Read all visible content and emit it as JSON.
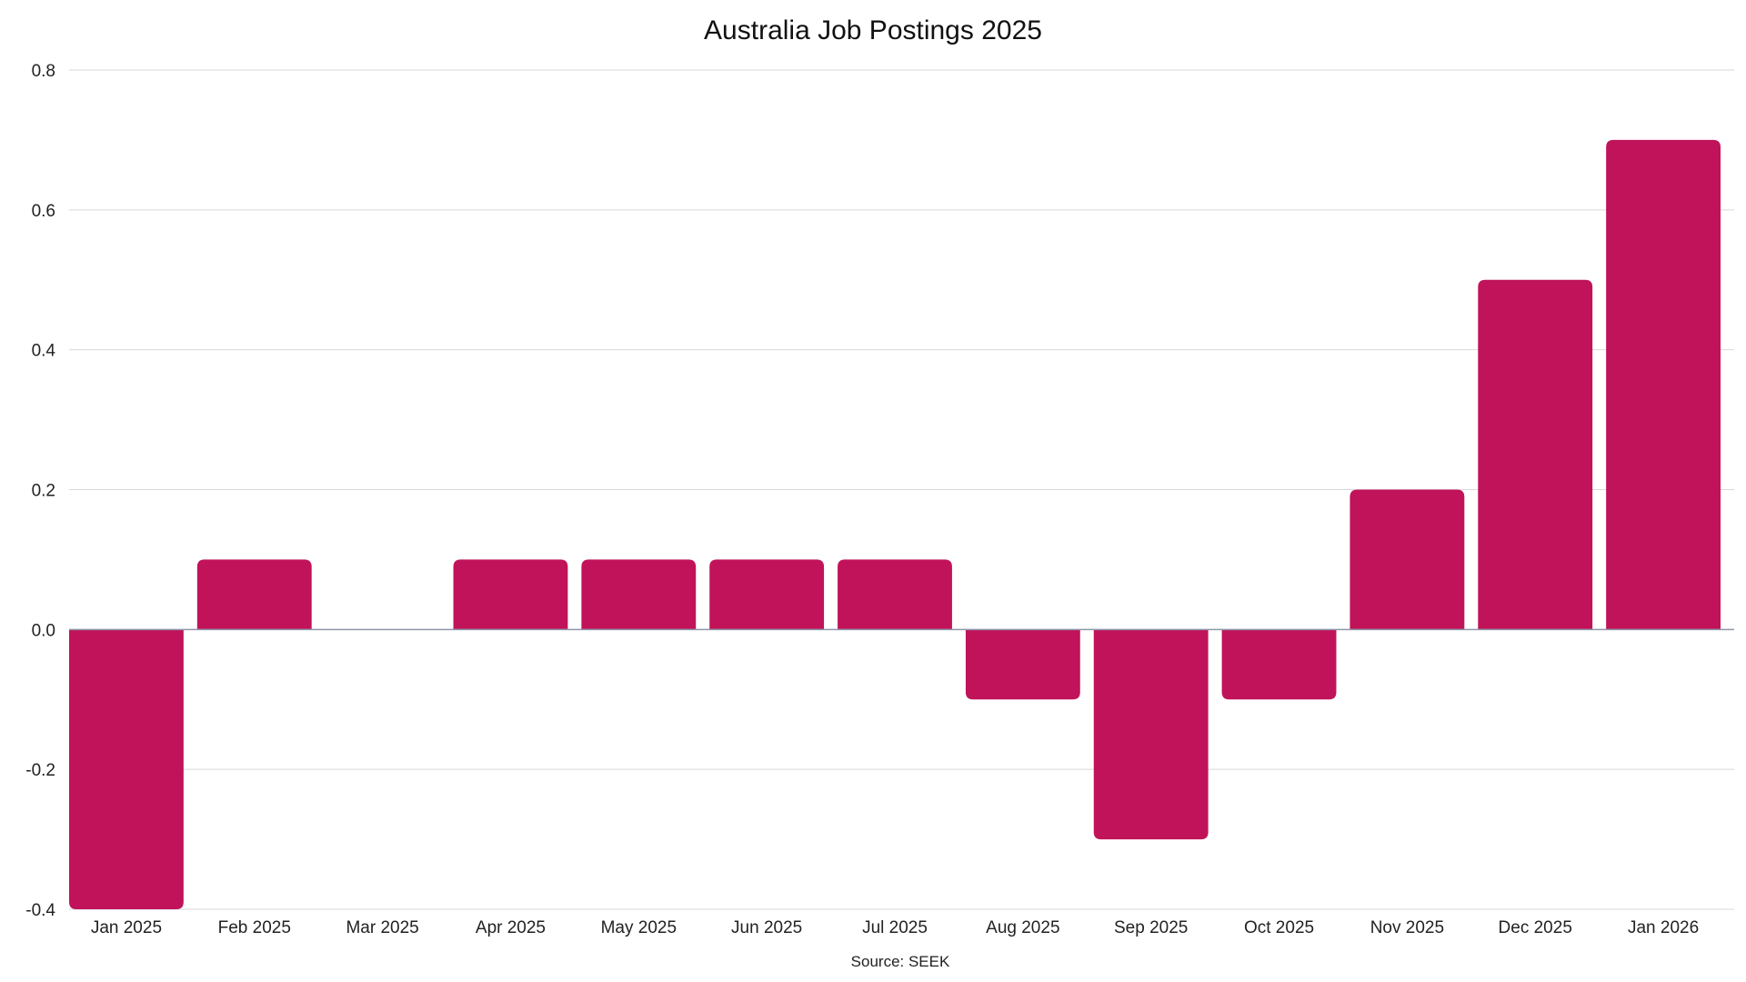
{
  "chart_data": {
    "type": "bar",
    "title": "Australia Job Postings 2025",
    "xlabel": "",
    "ylabel": "",
    "source": "Source: SEEK",
    "categories": [
      "Jan 2025",
      "Feb 2025",
      "Mar 2025",
      "Apr 2025",
      "May 2025",
      "Jun 2025",
      "Jul 2025",
      "Aug 2025",
      "Sep 2025",
      "Oct 2025",
      "Nov 2025",
      "Dec 2025",
      "Jan 2026"
    ],
    "values": [
      -0.4,
      0.1,
      0.0,
      0.1,
      0.1,
      0.1,
      0.1,
      -0.1,
      -0.3,
      -0.1,
      0.2,
      0.5,
      0.7
    ],
    "ylim": [
      -0.4,
      0.8
    ],
    "yticks": [
      -0.4,
      -0.2,
      0.0,
      0.2,
      0.4,
      0.6,
      0.8
    ],
    "ytick_labels": [
      "-0.4",
      "-0.2",
      "0.0",
      "0.2",
      "0.4",
      "0.6",
      "0.8"
    ],
    "grid": true,
    "legend": "none",
    "bar_color": "#C0135A",
    "grid_color": "#D9D9D9",
    "zero_line_color": "#8E98A8"
  }
}
